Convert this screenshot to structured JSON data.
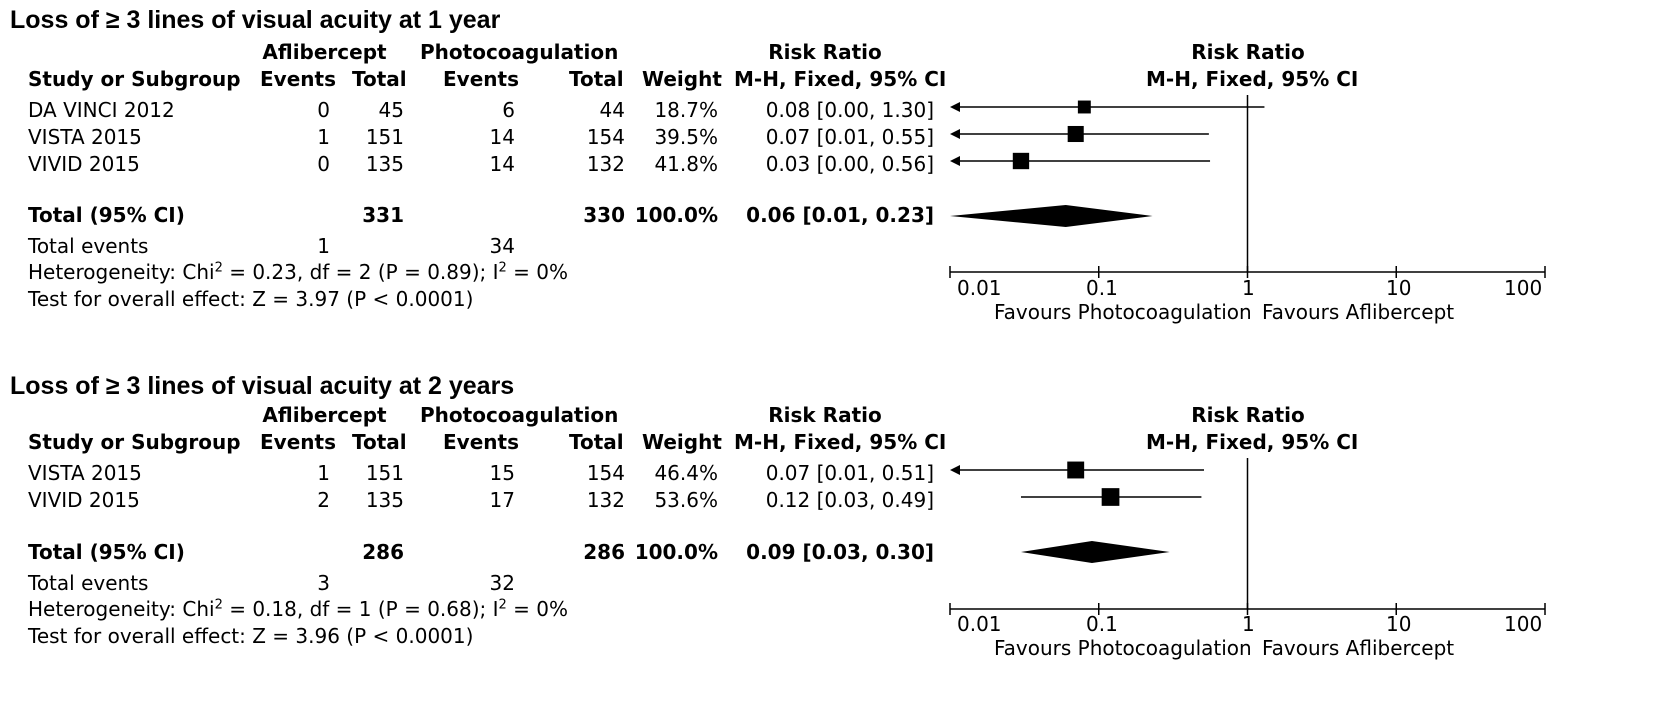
{
  "columns": {
    "study": "Study or Subgroup",
    "group1": "Aflibercept",
    "group2": "Photocoagulation",
    "events": "Events",
    "total": "Total",
    "weight": "Weight",
    "rr": "Risk Ratio",
    "rr_method": "M-H, Fixed, 95% CI"
  },
  "axis": {
    "ticks": [
      "0.01",
      "0.1",
      "1",
      "10",
      "100"
    ],
    "favours_left": "Favours Photocoagulation",
    "favours_right": "Favours Aflibercept"
  },
  "panels": [
    {
      "title": "Loss of ≥ 3 lines of visual acuity at 1 year",
      "studies": [
        {
          "name": "DA VINCI 2012",
          "e1": "0",
          "t1": "45",
          "e2": "6",
          "t2": "44",
          "weight": "18.7%",
          "ci": "0.08 [0.00, 1.30]"
        },
        {
          "name": "VISTA 2015",
          "e1": "1",
          "t1": "151",
          "e2": "14",
          "t2": "154",
          "weight": "39.5%",
          "ci": "0.07 [0.01, 0.55]"
        },
        {
          "name": "VIVID 2015",
          "e1": "0",
          "t1": "135",
          "e2": "14",
          "t2": "132",
          "weight": "41.8%",
          "ci": "0.03 [0.00, 0.56]"
        }
      ],
      "total": {
        "label": "Total (95% CI)",
        "t1": "331",
        "t2": "330",
        "weight": "100.0%",
        "ci": "0.06 [0.01, 0.23]"
      },
      "total_events": {
        "label": "Total events",
        "e1": "1",
        "e2": "34"
      },
      "heterogeneity": {
        "prefix": "Heterogeneity: Chi",
        "middle": " = 0.23, df = 2 (P = 0.89); I",
        "suffix": " = 0%",
        "sup": "2"
      },
      "overall": "Test for overall effect: Z = 3.97 (P < 0.0001)"
    },
    {
      "title": "Loss of ≥ 3 lines of visual acuity at 2 years",
      "studies": [
        {
          "name": "VISTA 2015",
          "e1": "1",
          "t1": "151",
          "e2": "15",
          "t2": "154",
          "weight": "46.4%",
          "ci": "0.07 [0.01, 0.51]"
        },
        {
          "name": "VIVID 2015",
          "e1": "2",
          "t1": "135",
          "e2": "17",
          "t2": "132",
          "weight": "53.6%",
          "ci": "0.12 [0.03, 0.49]"
        }
      ],
      "total": {
        "label": "Total (95% CI)",
        "t1": "286",
        "t2": "286",
        "weight": "100.0%",
        "ci": "0.09 [0.03, 0.30]"
      },
      "total_events": {
        "label": "Total events",
        "e1": "3",
        "e2": "32"
      },
      "heterogeneity": {
        "prefix": "Heterogeneity: Chi",
        "middle": " = 0.18, df = 1 (P = 0.68); I",
        "suffix": " = 0%",
        "sup": "2"
      },
      "overall": "Test for overall effect: Z = 3.96 (P < 0.0001)"
    }
  ],
  "chart_data": [
    {
      "type": "forest",
      "title": "Loss of ≥ 3 lines of visual acuity at 1 year",
      "xscale": "log",
      "xlim": [
        0.01,
        100
      ],
      "xticks": [
        0.01,
        0.1,
        1,
        10,
        100
      ],
      "studies": [
        {
          "name": "DA VINCI 2012",
          "rr": 0.08,
          "lower": 0.0,
          "upper": 1.3,
          "weight": 18.7,
          "lower_arrow": true
        },
        {
          "name": "VISTA 2015",
          "rr": 0.07,
          "lower": 0.01,
          "upper": 0.55,
          "weight": 39.5,
          "lower_arrow": true
        },
        {
          "name": "VIVID 2015",
          "rr": 0.03,
          "lower": 0.0,
          "upper": 0.56,
          "weight": 41.8,
          "lower_arrow": true
        }
      ],
      "total": {
        "rr": 0.06,
        "lower": 0.01,
        "upper": 0.23
      }
    },
    {
      "type": "forest",
      "title": "Loss of ≥ 3 lines of visual acuity at 2 years",
      "xscale": "log",
      "xlim": [
        0.01,
        100
      ],
      "xticks": [
        0.01,
        0.1,
        1,
        10,
        100
      ],
      "studies": [
        {
          "name": "VISTA 2015",
          "rr": 0.07,
          "lower": 0.01,
          "upper": 0.51,
          "weight": 46.4,
          "lower_arrow": true
        },
        {
          "name": "VIVID 2015",
          "rr": 0.12,
          "lower": 0.03,
          "upper": 0.49,
          "weight": 53.6,
          "lower_arrow": false
        }
      ],
      "total": {
        "rr": 0.09,
        "lower": 0.03,
        "upper": 0.3
      }
    }
  ]
}
